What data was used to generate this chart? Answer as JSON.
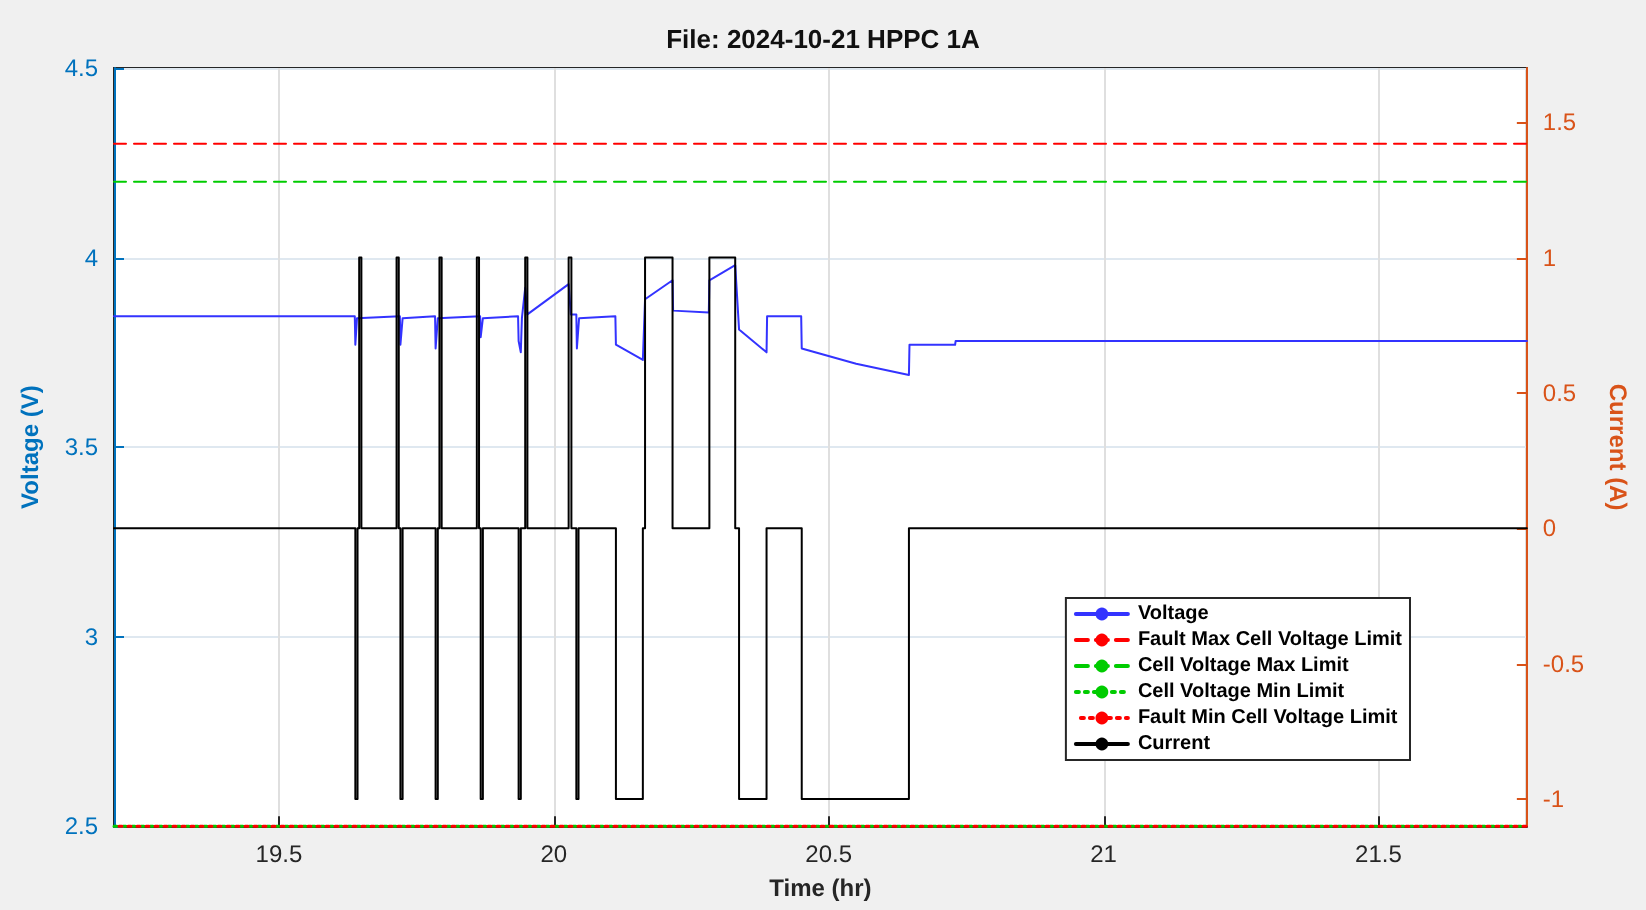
{
  "chart_data": {
    "type": "line",
    "title": "File: 2024-10-21 HPPC 1A",
    "xlabel": "Time (hr)",
    "ylabel": "Voltage (V)",
    "y2label": "Current (A)",
    "xlim": [
      19.2,
      21.77
    ],
    "xticks": [
      19.5,
      20,
      20.5,
      21,
      21.5
    ],
    "ylim": [
      2.5,
      4.5
    ],
    "yticks": [
      2.5,
      3,
      3.5,
      4,
      4.5
    ],
    "y2lim": [
      -1.1,
      1.7
    ],
    "y2ticks": [
      -1,
      -0.5,
      0,
      0.5,
      1,
      1.5
    ],
    "grid": true,
    "legend": "bottom right",
    "marker": "none",
    "series": [
      {
        "name": "Voltage",
        "color": "#3333ff",
        "line_style": "solid",
        "x": [
          19.2,
          19.638,
          19.639,
          19.642,
          19.72,
          19.721,
          19.725,
          19.784,
          19.785,
          19.789,
          19.866,
          19.867,
          19.871,
          19.935,
          19.936,
          19.94,
          19.942,
          19.948,
          19.952,
          20.027,
          20.031,
          20.041,
          20.042,
          20.046,
          20.112,
          20.113,
          20.162,
          20.166,
          20.216,
          20.217,
          20.282,
          20.283,
          20.33,
          20.337,
          20.387,
          20.388,
          20.45,
          20.451,
          20.55,
          20.646,
          20.647,
          20.73,
          20.731,
          21.77
        ],
        "values": [
          3.845,
          3.845,
          3.77,
          3.84,
          3.845,
          3.77,
          3.84,
          3.845,
          3.76,
          3.84,
          3.845,
          3.79,
          3.84,
          3.845,
          3.78,
          3.75,
          3.84,
          3.92,
          3.85,
          3.93,
          3.85,
          3.85,
          3.76,
          3.84,
          3.845,
          3.77,
          3.73,
          3.89,
          3.94,
          3.86,
          3.855,
          3.94,
          3.98,
          3.81,
          3.75,
          3.845,
          3.845,
          3.76,
          3.72,
          3.69,
          3.77,
          3.77,
          3.78,
          3.78
        ]
      },
      {
        "name": "Fault Max Cell Voltage Limit",
        "color": "#ff0000",
        "line_style": "dashed",
        "x": [
          19.2,
          21.77
        ],
        "values": [
          4.3,
          4.3
        ]
      },
      {
        "name": "Cell Voltage Max Limit",
        "color": "#00cc00",
        "line_style": "dashed",
        "x": [
          19.2,
          21.77
        ],
        "values": [
          4.2,
          4.2
        ]
      },
      {
        "name": "Cell Voltage Min Limit",
        "color": "#00cc00",
        "line_style": "dotted",
        "x": [
          19.2,
          21.77
        ],
        "values": [
          2.5,
          2.5
        ]
      },
      {
        "name": "Fault Min Cell Voltage Limit",
        "color": "#ff0000",
        "line_style": "dotted",
        "x": [
          19.2,
          21.77
        ],
        "values": [
          2.5,
          2.5
        ]
      },
      {
        "name": "Current",
        "color": "#000000",
        "type": "step",
        "axis": "y2",
        "line_style": "solid",
        "x": [
          19.2,
          19.639,
          19.643,
          19.646,
          19.65,
          19.714,
          19.718,
          19.721,
          19.725,
          19.785,
          19.789,
          19.792,
          19.796,
          19.86,
          19.864,
          19.867,
          19.871,
          19.936,
          19.94,
          19.948,
          19.952,
          20.027,
          20.032,
          20.041,
          20.045,
          20.113,
          20.162,
          20.166,
          20.216,
          20.283,
          20.33,
          20.337,
          20.387,
          20.451,
          20.646,
          21.77
        ],
        "values": [
          0,
          -1,
          0,
          1,
          0,
          1,
          0,
          -1,
          0,
          -1,
          0,
          1,
          0,
          1,
          0,
          -1,
          0,
          -1,
          0,
          1,
          0,
          1,
          0,
          -1,
          0,
          -1,
          0,
          1,
          0,
          1,
          0,
          -1,
          0,
          -1,
          0,
          0
        ]
      }
    ]
  }
}
